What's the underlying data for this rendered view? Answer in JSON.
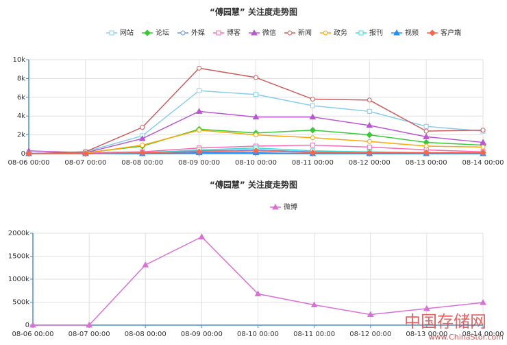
{
  "chart_data": [
    {
      "type": "line",
      "title": "“傅园慧” 关注度走势图",
      "categories": [
        "08-06 00:00",
        "08-07 00:00",
        "08-08 00:00",
        "08-09 00:00",
        "08-10 00:00",
        "08-11 00:00",
        "08-12 00:00",
        "08-13 00:00",
        "08-14 00:00"
      ],
      "ylim": [
        0,
        10000
      ],
      "yticks": [
        0,
        {
          "value": 2000,
          "label": "2k"
        },
        {
          "value": 4000,
          "label": "4k"
        },
        {
          "value": 6000,
          "label": "6k"
        },
        {
          "value": 8000,
          "label": "8k"
        },
        {
          "value": 10000,
          "label": "10k"
        }
      ],
      "grid": true,
      "series": [
        {
          "name": "网站",
          "color": "#87ceeb",
          "marker": "square",
          "values": [
            0,
            200,
            1900,
            6700,
            6300,
            5100,
            4500,
            2900,
            2400
          ]
        },
        {
          "name": "论坛",
          "color": "#32cd32",
          "marker": "diamond",
          "values": [
            0,
            100,
            800,
            2600,
            2200,
            2500,
            2000,
            1200,
            900
          ]
        },
        {
          "name": "外媒",
          "color": "#6495ed",
          "marker": "circle",
          "values": [
            50,
            50,
            100,
            300,
            400,
            200,
            100,
            100,
            100
          ]
        },
        {
          "name": "博客",
          "color": "#ff69b4",
          "marker": "square",
          "values": [
            0,
            100,
            200,
            600,
            800,
            900,
            700,
            400,
            200
          ]
        },
        {
          "name": "微信",
          "color": "#ba55d3",
          "marker": "triangle",
          "values": [
            300,
            100,
            1600,
            4500,
            3900,
            3900,
            3000,
            1800,
            1200
          ]
        },
        {
          "name": "新闻",
          "color": "#cd5c5c",
          "marker": "circle",
          "values": [
            0,
            200,
            2800,
            9100,
            8100,
            5800,
            5700,
            2400,
            2500
          ]
        },
        {
          "name": "政务",
          "color": "#ffa500",
          "marker": "circle",
          "values": [
            0,
            50,
            900,
            2500,
            2000,
            1700,
            1300,
            800,
            700
          ]
        },
        {
          "name": "报刊",
          "color": "#40e0d0",
          "marker": "square",
          "values": [
            0,
            0,
            100,
            400,
            600,
            300,
            200,
            100,
            100
          ]
        },
        {
          "name": "视频",
          "color": "#1e90ff",
          "marker": "triangle",
          "values": [
            0,
            0,
            0,
            100,
            100,
            0,
            0,
            0,
            0
          ]
        },
        {
          "name": "客户端",
          "color": "#ff6347",
          "marker": "diamond",
          "values": [
            0,
            0,
            100,
            200,
            300,
            100,
            100,
            100,
            100
          ]
        }
      ]
    },
    {
      "type": "line",
      "title": "“傅园慧” 关注度走势图",
      "categories": [
        "08-06 00:00",
        "08-07 00:00",
        "08-08 00:00",
        "08-09 00:00",
        "08-10 00:00",
        "08-11 00:00",
        "08-12 00:00",
        "08-13 00:00",
        "08-14 00:00"
      ],
      "ylim": [
        0,
        2000000
      ],
      "yticks": [
        0,
        {
          "value": 500000,
          "label": "500k"
        },
        {
          "value": 1000000,
          "label": "1000k"
        },
        {
          "value": 1500000,
          "label": "1500k"
        },
        {
          "value": 2000000,
          "label": "2000k"
        }
      ],
      "grid": true,
      "series": [
        {
          "name": "微博",
          "color": "#da70d6",
          "marker": "triangle",
          "values": [
            0,
            0,
            1310000,
            1920000,
            680000,
            440000,
            230000,
            360000,
            490000
          ]
        }
      ]
    }
  ],
  "watermark": {
    "text": "中国存储网",
    "url": "www.ChinaStor.com"
  }
}
